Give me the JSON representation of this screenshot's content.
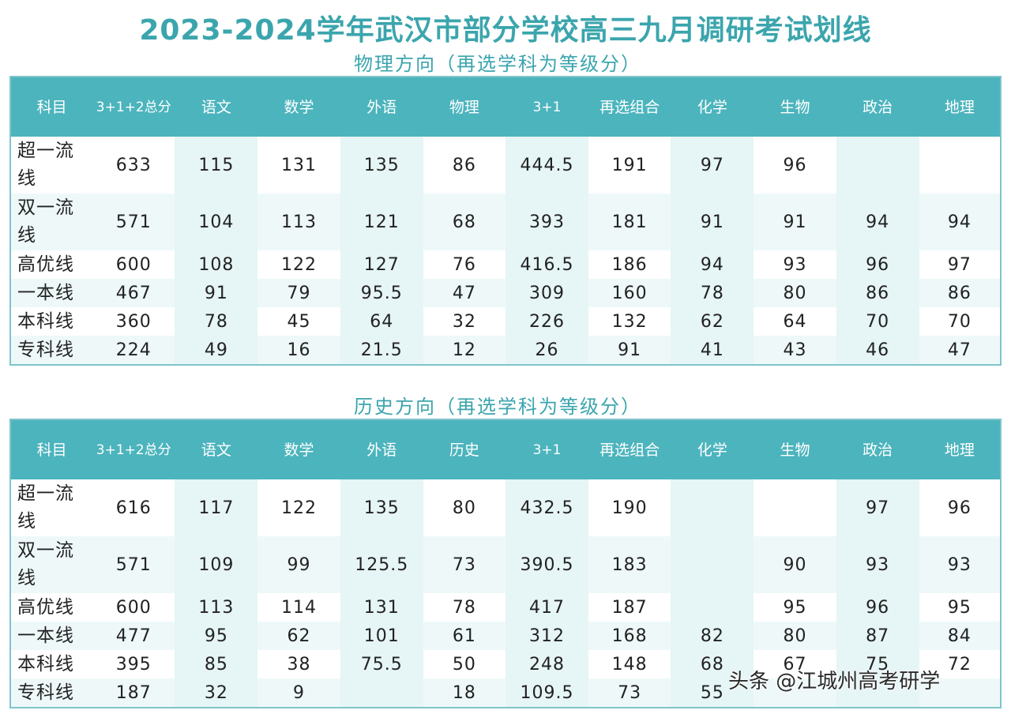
{
  "title": "2023-2024学年武汉市部分学校高三九月调研考试划线",
  "physics": {
    "subtitle": "物理方向（再选学科为等级分）",
    "headers": [
      "科目",
      "3+1+2总分",
      "语文",
      "数学",
      "外语",
      "物理",
      "3+1",
      "再选组合",
      "化学",
      "生物",
      "政治",
      "地理"
    ],
    "rows": [
      [
        "超一流线",
        "633",
        "115",
        "131",
        "135",
        "86",
        "444.5",
        "191",
        "97",
        "96",
        "",
        ""
      ],
      [
        "双一流线",
        "571",
        "104",
        "113",
        "121",
        "68",
        "393",
        "181",
        "91",
        "91",
        "94",
        "94"
      ],
      [
        "高优线",
        "600",
        "108",
        "122",
        "127",
        "76",
        "416.5",
        "186",
        "94",
        "93",
        "96",
        "97"
      ],
      [
        "一本线",
        "467",
        "91",
        "79",
        "95.5",
        "47",
        "309",
        "160",
        "78",
        "80",
        "86",
        "86"
      ],
      [
        "本科线",
        "360",
        "78",
        "45",
        "64",
        "32",
        "226",
        "132",
        "62",
        "64",
        "70",
        "70"
      ],
      [
        "专科线",
        "224",
        "49",
        "16",
        "21.5",
        "12",
        "26",
        "91",
        "41",
        "43",
        "46",
        "47"
      ]
    ]
  },
  "history": {
    "subtitle": "历史方向（再选学科为等级分）",
    "headers": [
      "科目",
      "3+1+2总分",
      "语文",
      "数学",
      "外语",
      "历史",
      "3+1",
      "再选组合",
      "化学",
      "生物",
      "政治",
      "地理"
    ],
    "rows": [
      [
        "超一流线",
        "616",
        "117",
        "122",
        "135",
        "80",
        "432.5",
        "190",
        "",
        "",
        "97",
        "96"
      ],
      [
        "双一流线",
        "571",
        "109",
        "99",
        "125.5",
        "73",
        "390.5",
        "183",
        "",
        "90",
        "93",
        "93"
      ],
      [
        "高优线",
        "600",
        "113",
        "114",
        "131",
        "78",
        "417",
        "187",
        "",
        "95",
        "96",
        "95"
      ],
      [
        "一本线",
        "477",
        "95",
        "62",
        "101",
        "61",
        "312",
        "168",
        "82",
        "80",
        "87",
        "84"
      ],
      [
        "本科线",
        "395",
        "85",
        "38",
        "75.5",
        "50",
        "248",
        "148",
        "68",
        "67",
        "75",
        "72"
      ],
      [
        "专科线",
        "187",
        "32",
        "9",
        "",
        "18",
        "109.5",
        "73",
        "55",
        "",
        "",
        ""
      ]
    ]
  },
  "watermark": "头条 @江城州高考研学"
}
